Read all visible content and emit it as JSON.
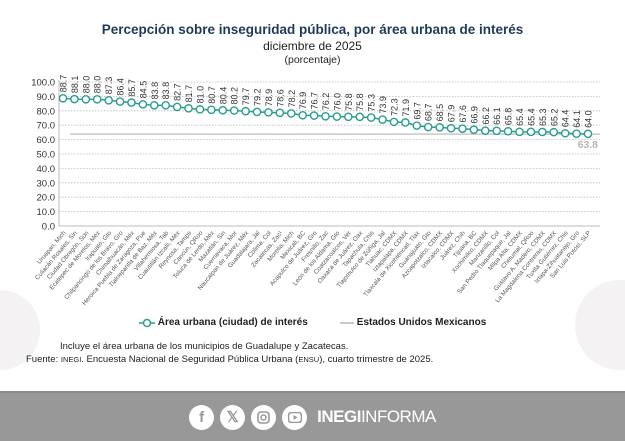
{
  "chart_data": {
    "type": "line",
    "title": "Percepción sobre inseguridad pública, por área urbana de interés",
    "subtitle": "diciembre de 2025",
    "unit": "(porcentaje)",
    "ylim": [
      0,
      100
    ],
    "yticks": [
      "0.0",
      "10.0",
      "20.0",
      "30.0",
      "40.0",
      "50.0",
      "60.0",
      "70.0",
      "80.0",
      "90.0",
      "100.0"
    ],
    "grid": true,
    "legend_position": "bottom",
    "categories": [
      "Uruapan, Mich",
      "Culiacán Rosales, Sin",
      "Ciudad Obregón, Son",
      "Ecatepec de Morelos, Méx",
      "Irapuato, Gto",
      "Chilpancingo de los Bravo, Gro",
      "Chimalhuacán, Méx",
      "Heroica Puebla de Zaragoza, Pue",
      "Tlalnepantla de Baz, Méx",
      "Villahermosa, Tab",
      "Cuautitlán Izcalli, Méx",
      "Reynosa, Tamps",
      "Cancún, QRoo",
      "Toluca de Lerdo, Méx",
      "Mazatlán, Sin",
      "Cuernavaca, Mor",
      "Naucalpan de Juárez, Méx",
      "Guadalajara, Jal",
      "Colima, Col",
      "Zacatecas, Zac¹",
      "Morelia, Mich",
      "Mexicali, BC",
      "Acapulco de Juárez, Gro",
      "Fresnillo, Zac",
      "León de los Aldama, Gto",
      "Coatzacoalcos, Ver",
      "Oaxaca de Juárez, Oax",
      "Tapachula, Chis",
      "Tlajomulco de Zúñiga, Jal",
      "Tláhuac, CDMX",
      "Iztapalapa, CDMX",
      "Tlaxcala de Xicohténcatl, Tlax",
      "Guanajuato, Gto",
      "Azcapotzalco, CDMX",
      "Iztacalco, CDMX",
      "Juárez, Chih",
      "Tijuana, BC",
      "Xochimilco, CDMX",
      "Manzanillo, Col",
      "San Pedro Tlaquepaque, Jal",
      "Milpa Alta, CDMX",
      "Chetumal, QRoo",
      "Gustavo A. Madero, CDMX",
      "La Magdalena Contreras, CDMX",
      "Tuxtla Gutiérrez, Chis",
      "Ixtapa-Zihuatanejo, Gro",
      "San Luis Potosí, SLP"
    ],
    "series": [
      {
        "name": "Área urbana (ciudad) de interés",
        "color": "#2a9d8f",
        "values": [
          88.7,
          88.1,
          88.0,
          88.0,
          87.3,
          86.4,
          85.7,
          84.5,
          83.8,
          83.8,
          82.7,
          81.7,
          81.0,
          80.7,
          80.4,
          80.2,
          79.7,
          79.2,
          78.9,
          78.6,
          78.2,
          76.9,
          76.7,
          76.2,
          76.0,
          75.8,
          75.8,
          75.3,
          73.9,
          72.3,
          71.9,
          69.7,
          68.7,
          68.5,
          67.9,
          67.6,
          66.9,
          66.2,
          66.1,
          65.8,
          65.4,
          65.4,
          65.3,
          65.2,
          64.4,
          64.1,
          64.0
        ]
      },
      {
        "name": "Estados Unidos Mexicanos",
        "color": "#c8c8c8",
        "value": 63.8,
        "label": "63.8"
      }
    ]
  },
  "notes": {
    "note": "Incluye el área urbana de los municipios de Guadalupe y Zacatecas.",
    "source_prefix": "Fuente: ",
    "source_org": "INEGI",
    "source_mid": ". Encuesta Nacional de Seguridad Pública Urbana (",
    "source_abbr": "ENSU",
    "source_end": "), cuarto trimestre de 2025."
  },
  "footer": {
    "icons": [
      "facebook-icon",
      "x-icon",
      "instagram-icon",
      "youtube-icon"
    ],
    "brand_bold": "INEGI",
    "brand_light": "INFORMA"
  }
}
